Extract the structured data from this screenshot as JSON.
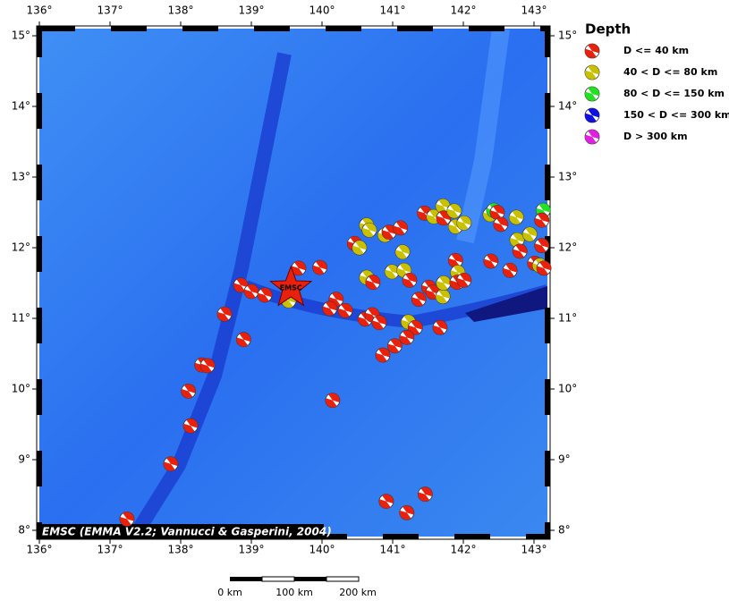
{
  "map": {
    "lon_ticks": [
      {
        "value": 136,
        "label": "136°"
      },
      {
        "value": 137,
        "label": "137°"
      },
      {
        "value": 138,
        "label": "138°"
      },
      {
        "value": 139,
        "label": "139°"
      },
      {
        "value": 140,
        "label": "140°"
      },
      {
        "value": 141,
        "label": "141°"
      },
      {
        "value": 142,
        "label": "142°"
      },
      {
        "value": 143,
        "label": "143°"
      }
    ],
    "lat_ticks": [
      {
        "value": 15,
        "label": "15°"
      },
      {
        "value": 14,
        "label": "14°"
      },
      {
        "value": 13,
        "label": "13°"
      },
      {
        "value": 12,
        "label": "12°"
      },
      {
        "value": 11,
        "label": "11°"
      },
      {
        "value": 10,
        "label": "10°"
      },
      {
        "value": 9,
        "label": "9°"
      },
      {
        "value": 8,
        "label": "8°"
      }
    ],
    "epicenter": {
      "label": "EMSC",
      "lon": 139.56,
      "lat": 11.43
    },
    "credit": "EMSC (EMMA V2.2; Vannucci & Gasperini, 2004)",
    "scale_bar": [
      "0 km",
      "100 km",
      "200 km"
    ],
    "events": [
      {
        "lon": 137.24,
        "lat": 8.16,
        "color": "#e8200c"
      },
      {
        "lon": 137.86,
        "lat": 8.94,
        "color": "#e8200c"
      },
      {
        "lon": 138.14,
        "lat": 9.48,
        "color": "#e8200c"
      },
      {
        "lon": 138.11,
        "lat": 9.97,
        "color": "#e8200c"
      },
      {
        "lon": 138.3,
        "lat": 10.34,
        "color": "#e8200c"
      },
      {
        "lon": 138.38,
        "lat": 10.33,
        "color": "#e8200c"
      },
      {
        "lon": 138.89,
        "lat": 10.7,
        "color": "#e8200c"
      },
      {
        "lon": 138.62,
        "lat": 11.06,
        "color": "#e8200c"
      },
      {
        "lon": 138.85,
        "lat": 11.47,
        "color": "#e8200c"
      },
      {
        "lon": 139.0,
        "lat": 11.38,
        "color": "#e8200c"
      },
      {
        "lon": 139.19,
        "lat": 11.33,
        "color": "#e8200c"
      },
      {
        "lon": 139.53,
        "lat": 11.25,
        "color": "#c8c000"
      },
      {
        "lon": 139.67,
        "lat": 11.71,
        "color": "#e8200c"
      },
      {
        "lon": 139.97,
        "lat": 11.72,
        "color": "#e8200c"
      },
      {
        "lon": 140.2,
        "lat": 11.27,
        "color": "#e8200c"
      },
      {
        "lon": 140.11,
        "lat": 11.14,
        "color": "#e8200c"
      },
      {
        "lon": 140.33,
        "lat": 11.11,
        "color": "#e8200c"
      },
      {
        "lon": 140.15,
        "lat": 9.84,
        "color": "#e8200c"
      },
      {
        "lon": 140.46,
        "lat": 12.06,
        "color": "#e8200c"
      },
      {
        "lon": 140.53,
        "lat": 12.0,
        "color": "#c8c000"
      },
      {
        "lon": 140.63,
        "lat": 12.32,
        "color": "#c8c000"
      },
      {
        "lon": 140.67,
        "lat": 12.25,
        "color": "#c8c000"
      },
      {
        "lon": 140.89,
        "lat": 12.18,
        "color": "#c8c000"
      },
      {
        "lon": 140.95,
        "lat": 12.22,
        "color": "#e8200c"
      },
      {
        "lon": 141.11,
        "lat": 12.28,
        "color": "#e8200c"
      },
      {
        "lon": 141.14,
        "lat": 11.94,
        "color": "#c8c000"
      },
      {
        "lon": 140.63,
        "lat": 11.58,
        "color": "#c8c000"
      },
      {
        "lon": 140.72,
        "lat": 11.51,
        "color": "#e8200c"
      },
      {
        "lon": 140.99,
        "lat": 11.66,
        "color": "#c8c000"
      },
      {
        "lon": 141.16,
        "lat": 11.68,
        "color": "#c8c000"
      },
      {
        "lon": 141.24,
        "lat": 11.54,
        "color": "#e8200c"
      },
      {
        "lon": 140.61,
        "lat": 10.99,
        "color": "#e8200c"
      },
      {
        "lon": 140.71,
        "lat": 11.05,
        "color": "#e8200c"
      },
      {
        "lon": 140.81,
        "lat": 10.94,
        "color": "#e8200c"
      },
      {
        "lon": 141.22,
        "lat": 10.95,
        "color": "#c8c000"
      },
      {
        "lon": 141.32,
        "lat": 10.87,
        "color": "#e8200c"
      },
      {
        "lon": 141.2,
        "lat": 10.73,
        "color": "#e8200c"
      },
      {
        "lon": 141.03,
        "lat": 10.61,
        "color": "#e8200c"
      },
      {
        "lon": 140.86,
        "lat": 10.48,
        "color": "#e8200c"
      },
      {
        "lon": 141.37,
        "lat": 11.27,
        "color": "#e8200c"
      },
      {
        "lon": 141.51,
        "lat": 11.44,
        "color": "#e8200c"
      },
      {
        "lon": 141.57,
        "lat": 11.37,
        "color": "#e8200c"
      },
      {
        "lon": 141.71,
        "lat": 11.31,
        "color": "#c8c000"
      },
      {
        "lon": 141.72,
        "lat": 11.5,
        "color": "#c8c000"
      },
      {
        "lon": 141.67,
        "lat": 10.87,
        "color": "#e8200c"
      },
      {
        "lon": 141.89,
        "lat": 11.82,
        "color": "#e8200c"
      },
      {
        "lon": 141.92,
        "lat": 11.65,
        "color": "#c8c000"
      },
      {
        "lon": 141.91,
        "lat": 11.51,
        "color": "#e8200c"
      },
      {
        "lon": 142.01,
        "lat": 11.54,
        "color": "#e8200c"
      },
      {
        "lon": 141.45,
        "lat": 12.49,
        "color": "#e8200c"
      },
      {
        "lon": 141.58,
        "lat": 12.44,
        "color": "#c8c000"
      },
      {
        "lon": 141.71,
        "lat": 12.59,
        "color": "#c8c000"
      },
      {
        "lon": 141.72,
        "lat": 12.42,
        "color": "#e8200c"
      },
      {
        "lon": 141.87,
        "lat": 12.52,
        "color": "#c8c000"
      },
      {
        "lon": 141.89,
        "lat": 12.3,
        "color": "#c8c000"
      },
      {
        "lon": 142.01,
        "lat": 12.35,
        "color": "#c8c000"
      },
      {
        "lon": 142.38,
        "lat": 12.47,
        "color": "#c8c000"
      },
      {
        "lon": 142.43,
        "lat": 12.53,
        "color": "#22e022"
      },
      {
        "lon": 142.48,
        "lat": 12.5,
        "color": "#e8200c"
      },
      {
        "lon": 142.53,
        "lat": 12.33,
        "color": "#e8200c"
      },
      {
        "lon": 142.39,
        "lat": 11.81,
        "color": "#e8200c"
      },
      {
        "lon": 142.66,
        "lat": 11.68,
        "color": "#e8200c"
      },
      {
        "lon": 142.75,
        "lat": 12.43,
        "color": "#c8c000"
      },
      {
        "lon": 142.76,
        "lat": 12.11,
        "color": "#c8c000"
      },
      {
        "lon": 142.8,
        "lat": 11.95,
        "color": "#e8200c"
      },
      {
        "lon": 142.94,
        "lat": 12.19,
        "color": "#c8c000"
      },
      {
        "lon": 143.13,
        "lat": 12.53,
        "color": "#22e022"
      },
      {
        "lon": 143.11,
        "lat": 12.39,
        "color": "#e8200c"
      },
      {
        "lon": 143.11,
        "lat": 12.03,
        "color": "#e8200c"
      },
      {
        "lon": 143.01,
        "lat": 11.78,
        "color": "#e8200c"
      },
      {
        "lon": 143.08,
        "lat": 11.75,
        "color": "#c8c000"
      },
      {
        "lon": 143.14,
        "lat": 11.71,
        "color": "#e8200c"
      },
      {
        "lon": 140.91,
        "lat": 8.41,
        "color": "#e8200c"
      },
      {
        "lon": 141.2,
        "lat": 8.25,
        "color": "#e8200c"
      },
      {
        "lon": 141.46,
        "lat": 8.51,
        "color": "#e8200c"
      }
    ]
  },
  "legend": {
    "title": "Depth",
    "items": [
      {
        "label": "D <= 40 km",
        "color": "#e8200c"
      },
      {
        "label": "40 < D <= 80 km",
        "color": "#c8c000"
      },
      {
        "label": "80 < D <= 150 km",
        "color": "#22e022"
      },
      {
        "label": "150 < D <= 300 km",
        "color": "#1010e0"
      },
      {
        "label": "D > 300 km",
        "color": "#e020e0"
      }
    ]
  }
}
